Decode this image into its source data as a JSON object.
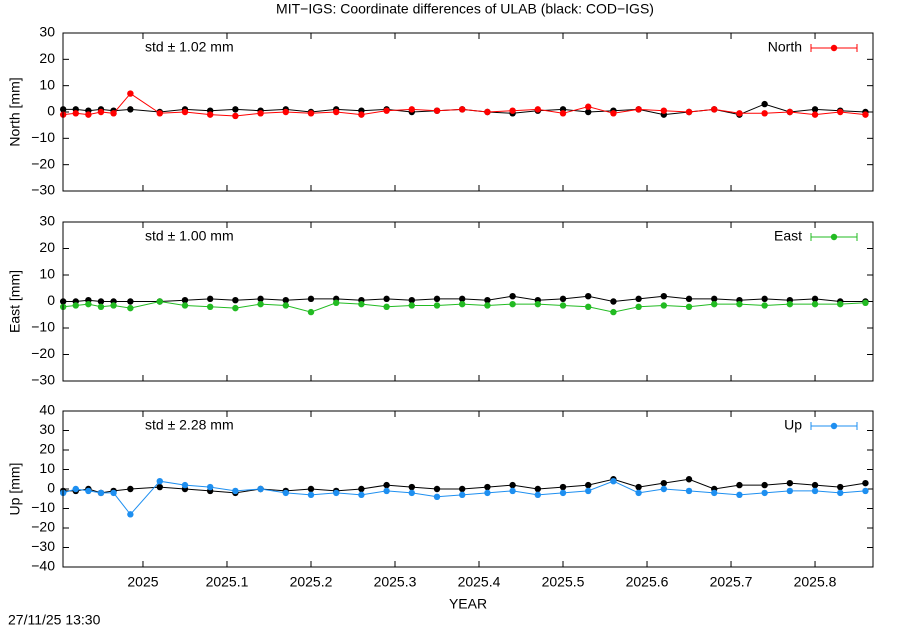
{
  "title": "MIT−IGS: Coordinate differences of ULAB (black: COD−IGS)",
  "timestamp": "27/11/25 13:30",
  "chart_data": [
    {
      "type": "line",
      "ylabel": "North [mm]",
      "annotation": "std ± 1.02 mm",
      "xlim": [
        2024.9048,
        2025.869
      ],
      "xticks": [
        2025,
        2025.1,
        2025.2,
        2025.3,
        2025.4,
        2025.5,
        2025.6,
        2025.7,
        2025.8
      ],
      "ylim": [
        -30,
        30
      ],
      "yticks": [
        {
          "value": -30,
          "label": "−30"
        },
        {
          "value": -20,
          "label": "−20"
        },
        {
          "value": -10,
          "label": "−10"
        },
        0,
        10,
        20,
        30
      ],
      "legend": "upper right",
      "x": [
        2024.905,
        2024.92,
        2024.935,
        2024.95,
        2024.965,
        2024.985,
        2025.02,
        2025.05,
        2025.08,
        2025.11,
        2025.14,
        2025.17,
        2025.2,
        2025.23,
        2025.26,
        2025.29,
        2025.32,
        2025.35,
        2025.38,
        2025.41,
        2025.44,
        2025.47,
        2025.5,
        2025.53,
        2025.56,
        2025.59,
        2025.62,
        2025.65,
        2025.68,
        2025.71,
        2025.74,
        2025.77,
        2025.8,
        2025.83,
        2025.86
      ],
      "series": [
        {
          "color": "#000000",
          "values": [
            1,
            1,
            0.5,
            1,
            0.5,
            1,
            0,
            1,
            0.5,
            1,
            0.5,
            1,
            0,
            1,
            0.5,
            1,
            0,
            0.5,
            1,
            0,
            -0.5,
            0.5,
            1,
            0,
            0.5,
            1,
            -1,
            0,
            1,
            -1,
            3,
            0,
            1,
            0.5,
            0
          ]
        },
        {
          "name": "North",
          "color": "#ff0000",
          "values": [
            -1,
            -0.5,
            -1,
            0,
            -0.5,
            7,
            -0.5,
            0,
            -1,
            -1.5,
            -0.5,
            0,
            -0.5,
            0,
            -1,
            0.5,
            1,
            0.5,
            1,
            0,
            0.5,
            1,
            -0.5,
            2,
            -0.5,
            1,
            0.5,
            0,
            1,
            -0.5,
            -0.5,
            0,
            -1,
            0,
            -1
          ]
        }
      ]
    },
    {
      "type": "line",
      "ylabel": "East [mm]",
      "annotation": "std ± 1.00 mm",
      "xlim": [
        2024.9048,
        2025.869
      ],
      "xticks": [
        2025,
        2025.1,
        2025.2,
        2025.3,
        2025.4,
        2025.5,
        2025.6,
        2025.7,
        2025.8
      ],
      "ylim": [
        -30,
        30
      ],
      "yticks": [
        {
          "value": -30,
          "label": "−30"
        },
        {
          "value": -20,
          "label": "−20"
        },
        {
          "value": -10,
          "label": "−10"
        },
        0,
        10,
        20,
        30
      ],
      "legend": "upper right",
      "x": [
        2024.905,
        2024.92,
        2024.935,
        2024.95,
        2024.965,
        2024.985,
        2025.02,
        2025.05,
        2025.08,
        2025.11,
        2025.14,
        2025.17,
        2025.2,
        2025.23,
        2025.26,
        2025.29,
        2025.32,
        2025.35,
        2025.38,
        2025.41,
        2025.44,
        2025.47,
        2025.5,
        2025.53,
        2025.56,
        2025.59,
        2025.62,
        2025.65,
        2025.68,
        2025.71,
        2025.74,
        2025.77,
        2025.8,
        2025.83,
        2025.86
      ],
      "series": [
        {
          "color": "#000000",
          "values": [
            0,
            0,
            0.5,
            0,
            0,
            0,
            0,
            0.5,
            1,
            0.5,
            1,
            0.5,
            1,
            1,
            0.5,
            1,
            0.5,
            1,
            1,
            0.5,
            2,
            0.5,
            1,
            2,
            0,
            1,
            2,
            1,
            1,
            0.5,
            1,
            0.5,
            1,
            0,
            0
          ]
        },
        {
          "name": "East",
          "color": "#22bb22",
          "values": [
            -2,
            -1.5,
            -1,
            -2,
            -1.5,
            -2.5,
            0,
            -1.5,
            -2,
            -2.5,
            -1,
            -1.5,
            -4,
            -0.5,
            -1,
            -2,
            -1.5,
            -1.5,
            -1,
            -1.5,
            -1,
            -1,
            -1.5,
            -2,
            -4,
            -2,
            -1.5,
            -2,
            -1,
            -1,
            -1.5,
            -1,
            -1,
            -1,
            -0.5
          ]
        }
      ]
    },
    {
      "type": "line",
      "ylabel": "Up [mm]",
      "annotation": "std ± 2.28 mm",
      "xlabel": "YEAR",
      "xlim": [
        2024.9048,
        2025.869
      ],
      "xticks": [
        2025,
        2025.1,
        2025.2,
        2025.3,
        2025.4,
        2025.5,
        2025.6,
        2025.7,
        2025.8
      ],
      "ylim": [
        -40,
        40
      ],
      "yticks": [
        {
          "value": -40,
          "label": "−40"
        },
        {
          "value": -30,
          "label": "−30"
        },
        {
          "value": -20,
          "label": "−20"
        },
        {
          "value": -10,
          "label": "−10"
        },
        0,
        10,
        20,
        30,
        40
      ],
      "legend": "upper right",
      "x": [
        2024.905,
        2024.92,
        2024.935,
        2024.95,
        2024.965,
        2024.985,
        2025.02,
        2025.05,
        2025.08,
        2025.11,
        2025.14,
        2025.17,
        2025.2,
        2025.23,
        2025.26,
        2025.29,
        2025.32,
        2025.35,
        2025.38,
        2025.41,
        2025.44,
        2025.47,
        2025.5,
        2025.53,
        2025.56,
        2025.59,
        2025.62,
        2025.65,
        2025.68,
        2025.71,
        2025.74,
        2025.77,
        2025.8,
        2025.83,
        2025.86
      ],
      "series": [
        {
          "color": "#000000",
          "values": [
            -1,
            -1,
            0,
            -2,
            -1,
            0,
            1,
            0,
            -1,
            -2,
            0,
            -1,
            0,
            -1,
            0,
            2,
            1,
            0,
            0,
            1,
            2,
            0,
            1,
            2,
            5,
            1,
            3,
            5,
            0,
            2,
            2,
            3,
            2,
            1,
            3
          ]
        },
        {
          "name": "Up",
          "color": "#1e8ff0",
          "values": [
            -2,
            0,
            -1,
            -2,
            -2,
            -13,
            4,
            2,
            1,
            -1,
            0,
            -2,
            -3,
            -2,
            -3,
            -1,
            -2,
            -4,
            -3,
            -2,
            -1,
            -3,
            -2,
            -1,
            4,
            -2,
            0,
            -1,
            -2,
            -3,
            -2,
            -1,
            -1,
            -2,
            -1
          ]
        }
      ]
    }
  ]
}
